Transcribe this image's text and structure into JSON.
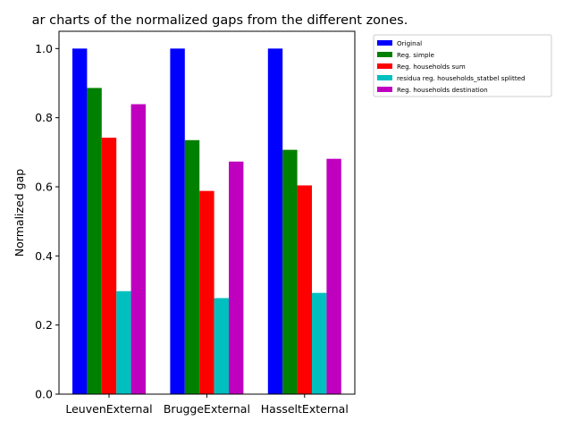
{
  "chart_data": {
    "type": "bar",
    "title": "ar charts of the normalized gaps from the different zones.",
    "xlabel": "",
    "ylabel": "Normalized gap",
    "ylim": [
      0,
      1.05
    ],
    "yticks": [
      "0.0",
      "0.2",
      "0.4",
      "0.6",
      "0.8",
      "1.0"
    ],
    "categories": [
      "LeuvenExternal",
      "BruggeExternal",
      "HasseltExternal"
    ],
    "legend_position": "outside-top-right",
    "grid": false,
    "series": [
      {
        "name": "Original",
        "color": "#0000ff",
        "values": [
          1.0,
          1.0,
          1.0
        ]
      },
      {
        "name": "Reg. simple",
        "color": "#008000",
        "values": [
          0.886,
          0.735,
          0.707
        ]
      },
      {
        "name": "Reg. households sum",
        "color": "#ff0000",
        "values": [
          0.742,
          0.588,
          0.604
        ]
      },
      {
        "name": "residua reg. households_statbel splitted",
        "color": "#00bfbf",
        "values": [
          0.298,
          0.278,
          0.293
        ]
      },
      {
        "name": "Reg. households destination",
        "color": "#bf00bf",
        "values": [
          0.839,
          0.673,
          0.681
        ]
      }
    ]
  }
}
